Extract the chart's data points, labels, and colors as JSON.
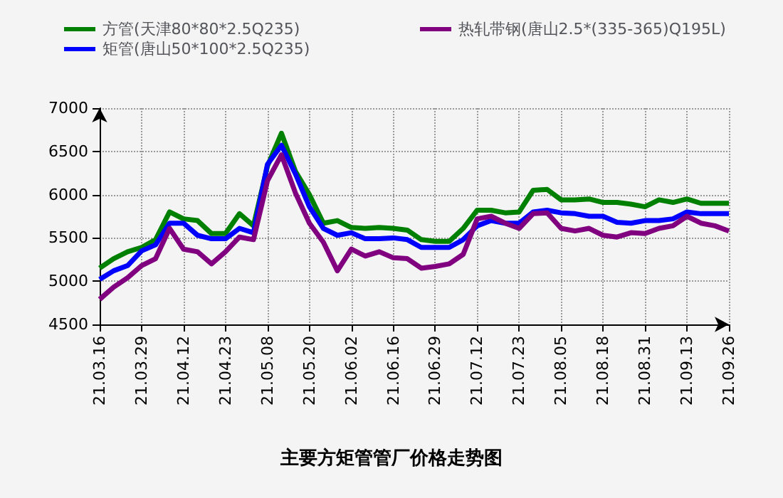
{
  "chart_data": {
    "type": "line",
    "title": "主要方矩管管厂价格走势图",
    "categories": [
      "21.03.16",
      null,
      null,
      "21.03.29",
      null,
      null,
      "21.04.12",
      null,
      null,
      "21.04.23",
      null,
      null,
      "21.05.08",
      null,
      null,
      "21.05.20",
      null,
      null,
      "21.06.02",
      null,
      null,
      "21.06.16",
      null,
      null,
      "21.06.29",
      null,
      null,
      "21.07.12",
      null,
      null,
      "21.07.23",
      null,
      null,
      "21.08.05",
      null,
      null,
      "21.08.18",
      null,
      null,
      "21.08.31",
      null,
      null,
      "21.09.13",
      null,
      null,
      "21.09.26"
    ],
    "series": [
      {
        "name": "方管(天津80*80*2.5Q235)",
        "color": "#008000",
        "values": [
          5150,
          5260,
          5340,
          5390,
          5480,
          5800,
          5720,
          5700,
          5550,
          5550,
          5780,
          5640,
          6330,
          6710,
          6270,
          6000,
          5670,
          5700,
          5620,
          5610,
          5620,
          5610,
          5590,
          5480,
          5460,
          5460,
          5610,
          5820,
          5820,
          5790,
          5800,
          6050,
          6060,
          5940,
          5940,
          5950,
          5910,
          5910,
          5890,
          5860,
          5940,
          5910,
          5950,
          5900,
          5900,
          5900
        ]
      },
      {
        "name": "矩管(唐山50*100*2.5Q235)",
        "color": "#0000ff",
        "values": [
          5020,
          5120,
          5180,
          5350,
          5420,
          5670,
          5670,
          5530,
          5490,
          5490,
          5610,
          5560,
          6350,
          6570,
          6240,
          5860,
          5610,
          5530,
          5560,
          5490,
          5490,
          5500,
          5480,
          5390,
          5390,
          5390,
          5480,
          5640,
          5700,
          5670,
          5670,
          5800,
          5820,
          5790,
          5780,
          5750,
          5750,
          5680,
          5670,
          5700,
          5700,
          5720,
          5800,
          5780,
          5780,
          5780
        ]
      },
      {
        "name": "热轧带钢(唐山2.5*(335-365)Q195L)",
        "color": "#800080",
        "values": [
          4790,
          4930,
          5040,
          5180,
          5260,
          5610,
          5370,
          5340,
          5200,
          5340,
          5510,
          5480,
          6160,
          6460,
          6020,
          5670,
          5450,
          5120,
          5370,
          5290,
          5340,
          5270,
          5260,
          5150,
          5170,
          5200,
          5310,
          5720,
          5750,
          5670,
          5610,
          5780,
          5790,
          5610,
          5580,
          5610,
          5530,
          5510,
          5560,
          5550,
          5610,
          5640,
          5750,
          5670,
          5640,
          5580
        ]
      }
    ],
    "ylim": [
      4500,
      7000
    ],
    "yticks": [
      4500,
      5000,
      5500,
      6000,
      6500,
      7000
    ],
    "grid": true,
    "legend": "top",
    "marker": "none",
    "line_style": "solid"
  }
}
